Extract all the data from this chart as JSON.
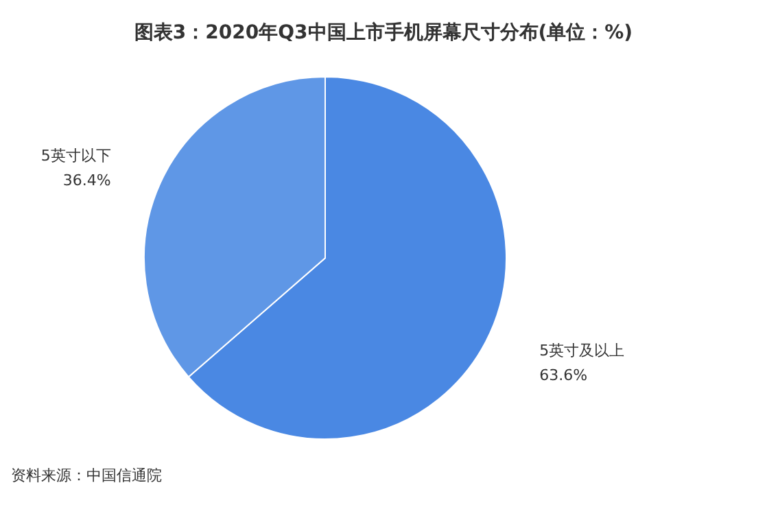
{
  "chart_data": {
    "type": "pie",
    "title": "图表3：2020年Q3中国上市手机屏幕尺寸分布(单位：%)",
    "categories": [
      "5英寸及以上",
      "5英寸以下"
    ],
    "values": [
      63.6,
      36.4
    ],
    "colors": [
      "#4a88e3",
      "#5f97e6"
    ],
    "value_labels": [
      "63.6%",
      "36.4%"
    ],
    "annotations": [
      "资料来源：中国信通院"
    ]
  }
}
